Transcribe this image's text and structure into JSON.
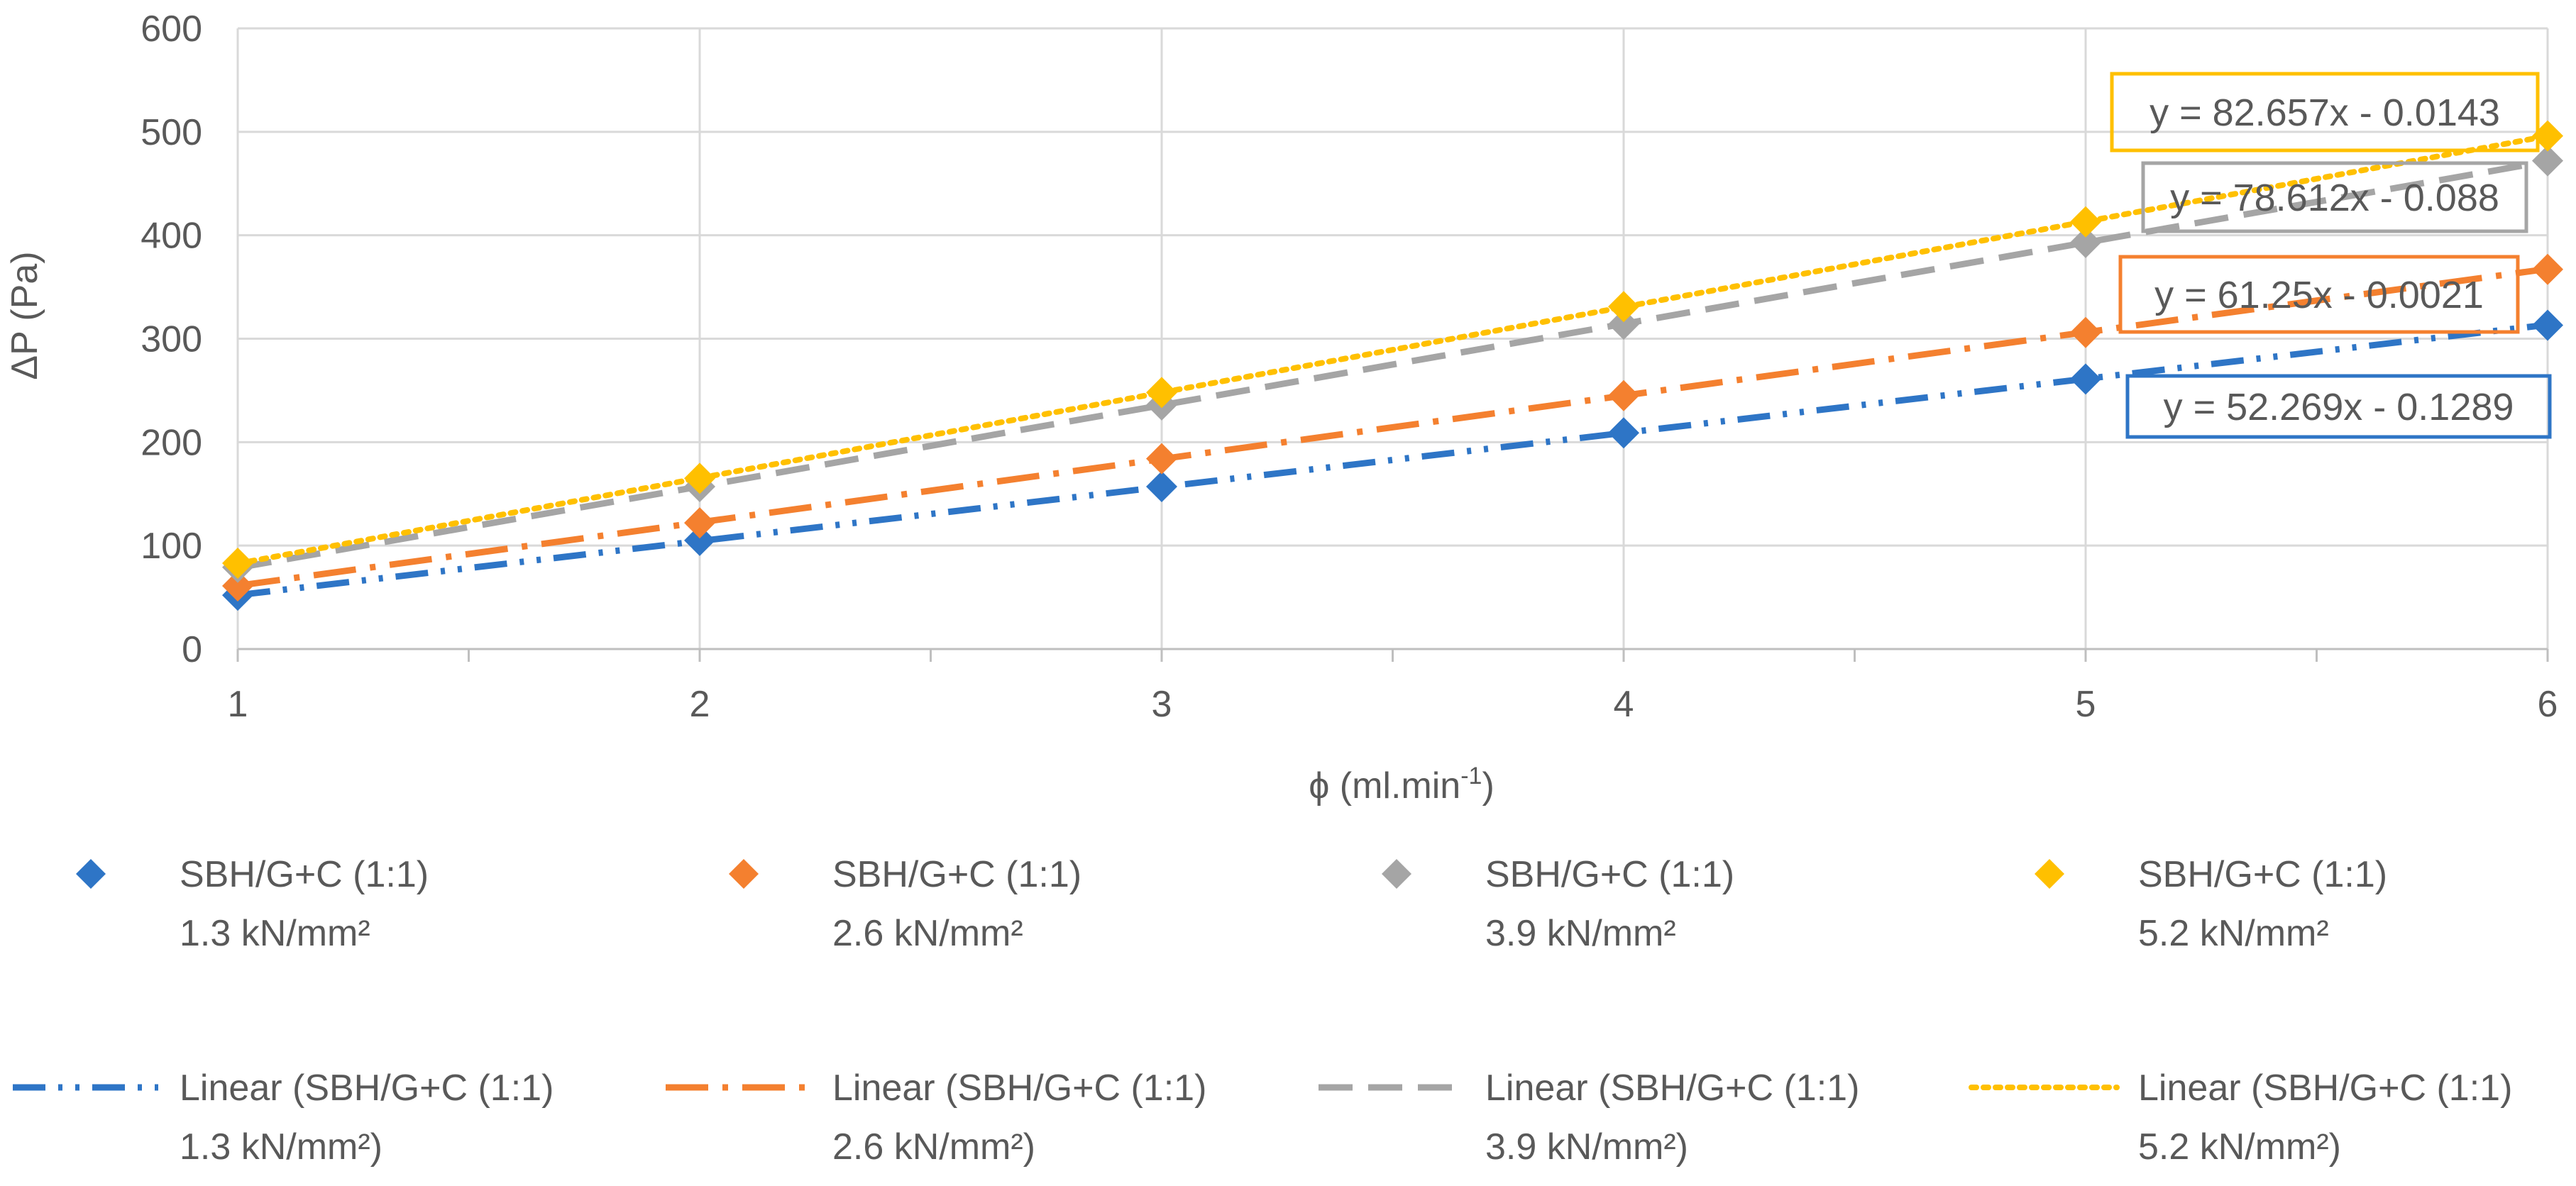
{
  "chart_data": {
    "type": "scatter",
    "title": "",
    "xlabel": "ϕ (ml.min",
    "xlabel_sup": "-1",
    "xlabel_close": ")",
    "ylabel": "ΔP (Pa)",
    "xlim": [
      1,
      6
    ],
    "ylim": [
      0,
      600
    ],
    "x_ticks": [
      "1",
      "2",
      "3",
      "4",
      "5",
      "6"
    ],
    "y_ticks": [
      "0",
      "100",
      "200",
      "300",
      "400",
      "500",
      "600"
    ],
    "grid": true,
    "series": [
      {
        "name_line1": "SBH/G+C (1:1)",
        "name_line2": "1.3 kN/mm²",
        "color": "#2E75C6",
        "x": [
          1,
          2,
          3,
          4,
          5,
          6
        ],
        "values": [
          52,
          105,
          157,
          209,
          261,
          313
        ],
        "trend_label_line1": "Linear (SBH/G+C (1:1)",
        "trend_label_line2": "1.3 kN/mm²)",
        "trend_style": "dash-dot-dot",
        "equation": "y = 52.269x - 0.1289",
        "slope": 52.269,
        "intercept": -0.1289
      },
      {
        "name_line1": "SBH/G+C (1:1)",
        "name_line2": "2.6 kN/mm²",
        "color": "#F4802F",
        "x": [
          1,
          2,
          3,
          4,
          5,
          6
        ],
        "values": [
          61,
          122,
          184,
          245,
          306,
          367
        ],
        "trend_label_line1": "Linear (SBH/G+C (1:1)",
        "trend_label_line2": "2.6 kN/mm²)",
        "trend_style": "long-dash-dot",
        "equation": "y = 61.25x - 0.0021",
        "slope": 61.25,
        "intercept": -0.0021
      },
      {
        "name_line1": "SBH/G+C (1:1)",
        "name_line2": "3.9 kN/mm²",
        "color": "#A5A5A5",
        "x": [
          1,
          2,
          3,
          4,
          5,
          6
        ],
        "values": [
          79,
          157,
          236,
          314,
          393,
          472
        ],
        "trend_label_line1": "Linear (SBH/G+C (1:1)",
        "trend_label_line2": "3.9 kN/mm²)",
        "trend_style": "dash",
        "equation": "y = 78.612x - 0.088",
        "slope": 78.612,
        "intercept": -0.088
      },
      {
        "name_line1": "SBH/G+C (1:1)",
        "name_line2": "5.2 kN/mm²",
        "color": "#FFC000",
        "x": [
          1,
          2,
          3,
          4,
          5,
          6
        ],
        "values": [
          83,
          165,
          248,
          331,
          413,
          496
        ],
        "trend_label_line1": "Linear (SBH/G+C (1:1)",
        "trend_label_line2": "5.2 kN/mm²)",
        "trend_style": "dot",
        "equation": "y = 82.657x - 0.0143",
        "slope": 82.657,
        "intercept": -0.0143
      }
    ]
  }
}
